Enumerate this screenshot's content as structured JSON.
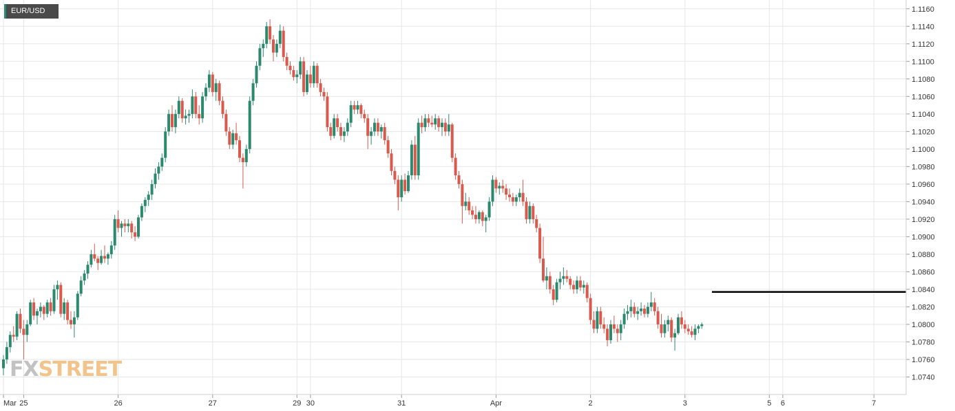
{
  "symbol": "EUR/USD",
  "logo": {
    "part1": "FX",
    "part2": "STREET"
  },
  "colors": {
    "up": "#2b8a6e",
    "down": "#d9594c",
    "grid": "#e6e6e6",
    "line": "#000000",
    "badge": "#4a4a4a"
  },
  "chart_data": {
    "type": "candlestick",
    "title": "",
    "xlabel": "",
    "ylabel": "",
    "ylim": [
      1.072,
      1.117
    ],
    "grid": true,
    "y_ticks": [
      "1.1160",
      "1.1140",
      "1.1120",
      "1.1100",
      "1.1080",
      "1.1060",
      "1.1040",
      "1.1020",
      "1.1000",
      "1.0980",
      "1.0960",
      "1.0940",
      "1.0920",
      "1.0900",
      "1.0880",
      "1.0860",
      "1.0840",
      "1.0820",
      "1.0800",
      "1.0780",
      "1.0760",
      "1.0740"
    ],
    "x_ticks": [
      {
        "label": "Mar",
        "index": 0
      },
      {
        "label": "25",
        "index": 6
      },
      {
        "label": "26",
        "index": 34
      },
      {
        "label": "27",
        "index": 62
      },
      {
        "label": "29",
        "index": 87
      },
      {
        "label": "30",
        "index": 91
      },
      {
        "label": "31",
        "index": 118
      },
      {
        "label": "Apr",
        "index": 146
      },
      {
        "label": "2",
        "index": 174
      },
      {
        "label": "3",
        "index": 202
      },
      {
        "label": "5",
        "index": 227
      },
      {
        "label": "6",
        "index": 231
      },
      {
        "label": "7",
        "index": 258
      }
    ],
    "hline": {
      "value": 1.0837,
      "from_index": 210
    },
    "candles": [
      [
        1.075,
        1.0765,
        1.0742,
        1.076
      ],
      [
        1.076,
        1.078,
        1.0755,
        1.0774
      ],
      [
        1.0774,
        1.0792,
        1.0768,
        1.0788
      ],
      [
        1.0788,
        1.0798,
        1.078,
        1.0786
      ],
      [
        1.0786,
        1.0815,
        1.0782,
        1.0812
      ],
      [
        1.0812,
        1.0818,
        1.079,
        1.0795
      ],
      [
        1.0795,
        1.0805,
        1.076,
        1.0788
      ],
      [
        1.0788,
        1.0805,
        1.078,
        1.08
      ],
      [
        1.08,
        1.0828,
        1.0798,
        1.0825
      ],
      [
        1.0825,
        1.083,
        1.0805,
        1.081
      ],
      [
        1.081,
        1.0818,
        1.08,
        1.0815
      ],
      [
        1.0815,
        1.0825,
        1.0808,
        1.082
      ],
      [
        1.082,
        1.0822,
        1.0805,
        1.0812
      ],
      [
        1.0812,
        1.0828,
        1.0808,
        1.0825
      ],
      [
        1.0825,
        1.083,
        1.081,
        1.0815
      ],
      [
        1.0815,
        1.0845,
        1.0812,
        1.084
      ],
      [
        1.084,
        1.085,
        1.0828,
        1.0845
      ],
      [
        1.0845,
        1.0848,
        1.0808,
        1.0812
      ],
      [
        1.0812,
        1.083,
        1.0805,
        1.0825
      ],
      [
        1.0825,
        1.0828,
        1.08,
        1.0805
      ],
      [
        1.0805,
        1.0815,
        1.0795,
        1.08
      ],
      [
        1.08,
        1.0815,
        1.0785,
        1.0808
      ],
      [
        1.0808,
        1.0838,
        1.0805,
        1.0835
      ],
      [
        1.0835,
        1.0855,
        1.0832,
        1.085
      ],
      [
        1.085,
        1.0862,
        1.0845,
        1.0858
      ],
      [
        1.0858,
        1.0872,
        1.0852,
        1.0868
      ],
      [
        1.0868,
        1.0885,
        1.0865,
        1.088
      ],
      [
        1.088,
        1.0892,
        1.0872,
        1.0875
      ],
      [
        1.0875,
        1.0878,
        1.0862,
        1.087
      ],
      [
        1.087,
        1.0885,
        1.0868,
        1.0878
      ],
      [
        1.0878,
        1.089,
        1.087,
        1.0875
      ],
      [
        1.0875,
        1.0882,
        1.0868,
        1.088
      ],
      [
        1.088,
        1.0895,
        1.0875,
        1.089
      ],
      [
        1.089,
        1.0925,
        1.0885,
        1.092
      ],
      [
        1.092,
        1.093,
        1.0905,
        1.091
      ],
      [
        1.091,
        1.0918,
        1.09,
        1.0915
      ],
      [
        1.0915,
        1.092,
        1.0905,
        1.0912
      ],
      [
        1.0912,
        1.092,
        1.0905,
        1.0915
      ],
      [
        1.0915,
        1.0918,
        1.0898,
        1.0905
      ],
      [
        1.0905,
        1.0912,
        1.0895,
        1.09
      ],
      [
        1.09,
        1.0925,
        1.0898,
        1.0922
      ],
      [
        1.0922,
        1.0938,
        1.0918,
        1.0935
      ],
      [
        1.0935,
        1.0945,
        1.0928,
        1.0942
      ],
      [
        1.0942,
        1.0952,
        1.0935,
        1.0948
      ],
      [
        1.0948,
        1.0965,
        1.0942,
        1.096
      ],
      [
        1.096,
        1.0978,
        1.0955,
        1.0972
      ],
      [
        1.0972,
        1.0985,
        1.0965,
        1.098
      ],
      [
        1.098,
        1.0995,
        1.0975,
        1.099
      ],
      [
        1.099,
        1.1025,
        1.0985,
        1.102
      ],
      [
        1.102,
        1.1045,
        1.1015,
        1.104
      ],
      [
        1.104,
        1.105,
        1.102,
        1.1025
      ],
      [
        1.1025,
        1.1045,
        1.1018,
        1.104
      ],
      [
        1.104,
        1.106,
        1.1035,
        1.1055
      ],
      [
        1.1055,
        1.1058,
        1.103,
        1.1035
      ],
      [
        1.1035,
        1.1045,
        1.1028,
        1.1038
      ],
      [
        1.1038,
        1.1045,
        1.103,
        1.104
      ],
      [
        1.104,
        1.1068,
        1.1035,
        1.106
      ],
      [
        1.106,
        1.1065,
        1.1035,
        1.104
      ],
      [
        1.104,
        1.105,
        1.1028,
        1.1035
      ],
      [
        1.1035,
        1.1065,
        1.103,
        1.106
      ],
      [
        1.106,
        1.1075,
        1.1055,
        1.107
      ],
      [
        1.107,
        1.109,
        1.1065,
        1.1085
      ],
      [
        1.1085,
        1.1088,
        1.106,
        1.1065
      ],
      [
        1.1065,
        1.108,
        1.1055,
        1.1075
      ],
      [
        1.1075,
        1.1078,
        1.105,
        1.1055
      ],
      [
        1.1055,
        1.106,
        1.1035,
        1.104
      ],
      [
        1.104,
        1.1045,
        1.1015,
        1.102
      ],
      [
        1.102,
        1.1025,
        1.1,
        1.1005
      ],
      [
        1.1005,
        1.1022,
        1.1,
        1.1018
      ],
      [
        1.1018,
        1.103,
        1.1005,
        1.101
      ],
      [
        1.101,
        1.1015,
        1.0985,
        1.099
      ],
      [
        1.099,
        1.0995,
        1.0955,
        1.0985
      ],
      [
        1.0985,
        1.1005,
        1.098,
        1.1
      ],
      [
        1.1,
        1.106,
        1.0995,
        1.1055
      ],
      [
        1.1055,
        1.108,
        1.105,
        1.1075
      ],
      [
        1.1075,
        1.11,
        1.107,
        1.1095
      ],
      [
        1.1095,
        1.112,
        1.109,
        1.1115
      ],
      [
        1.1115,
        1.1125,
        1.1105,
        1.112
      ],
      [
        1.112,
        1.1145,
        1.1115,
        1.114
      ],
      [
        1.114,
        1.1148,
        1.112,
        1.1125
      ],
      [
        1.1125,
        1.113,
        1.11,
        1.111
      ],
      [
        1.111,
        1.1125,
        1.1105,
        1.112
      ],
      [
        1.112,
        1.1142,
        1.1115,
        1.1135
      ],
      [
        1.1135,
        1.114,
        1.11,
        1.1105
      ],
      [
        1.1105,
        1.111,
        1.109,
        1.1095
      ],
      [
        1.1095,
        1.11,
        1.1085,
        1.109
      ],
      [
        1.109,
        1.1095,
        1.1078,
        1.1082
      ],
      [
        1.1082,
        1.109,
        1.1075,
        1.1085
      ],
      [
        1.1085,
        1.1105,
        1.108,
        1.11
      ],
      [
        1.11,
        1.1105,
        1.106,
        1.1065
      ],
      [
        1.1065,
        1.109,
        1.1062,
        1.1085
      ],
      [
        1.1085,
        1.1095,
        1.107,
        1.1075
      ],
      [
        1.1075,
        1.11,
        1.107,
        1.1095
      ],
      [
        1.1095,
        1.1098,
        1.107,
        1.1075
      ],
      [
        1.1075,
        1.108,
        1.106,
        1.1065
      ],
      [
        1.1065,
        1.107,
        1.1055,
        1.106
      ],
      [
        1.106,
        1.1065,
        1.102,
        1.1025
      ],
      [
        1.1025,
        1.103,
        1.101,
        1.1015
      ],
      [
        1.1015,
        1.104,
        1.1012,
        1.1035
      ],
      [
        1.1035,
        1.104,
        1.102,
        1.1025
      ],
      [
        1.1025,
        1.103,
        1.101,
        1.1015
      ],
      [
        1.1015,
        1.1025,
        1.1008,
        1.102
      ],
      [
        1.102,
        1.1035,
        1.1015,
        1.103
      ],
      [
        1.103,
        1.1055,
        1.1025,
        1.105
      ],
      [
        1.105,
        1.1055,
        1.104,
        1.1045
      ],
      [
        1.1045,
        1.1055,
        1.104,
        1.105
      ],
      [
        1.105,
        1.1052,
        1.1035,
        1.104
      ],
      [
        1.104,
        1.1045,
        1.103,
        1.1035
      ],
      [
        1.1035,
        1.104,
        1.1,
        1.1015
      ],
      [
        1.1015,
        1.1025,
        1.1005,
        1.102
      ],
      [
        1.102,
        1.1035,
        1.1015,
        1.103
      ],
      [
        1.103,
        1.1035,
        1.1015,
        1.102
      ],
      [
        1.102,
        1.1028,
        1.1012,
        1.1025
      ],
      [
        1.1025,
        1.103,
        1.1005,
        1.101
      ],
      [
        1.101,
        1.1015,
        1.099,
        1.0995
      ],
      [
        1.0995,
        1.1,
        1.097,
        1.0975
      ],
      [
        1.0975,
        1.098,
        1.096,
        1.0965
      ],
      [
        1.0965,
        1.097,
        1.093,
        1.0945
      ],
      [
        1.0945,
        1.097,
        1.094,
        1.0965
      ],
      [
        1.0965,
        1.0972,
        1.0948,
        1.0952
      ],
      [
        1.0952,
        1.0975,
        1.095,
        1.097
      ],
      [
        1.097,
        1.101,
        1.0965,
        1.1005
      ],
      [
        1.1005,
        1.1015,
        1.0965,
        1.097
      ],
      [
        1.097,
        1.1035,
        1.0965,
        1.103
      ],
      [
        1.103,
        1.1038,
        1.1018,
        1.1025
      ],
      [
        1.1025,
        1.104,
        1.102,
        1.1035
      ],
      [
        1.1035,
        1.104,
        1.1025,
        1.103
      ],
      [
        1.103,
        1.1038,
        1.1025,
        1.1028
      ],
      [
        1.1028,
        1.104,
        1.1022,
        1.1035
      ],
      [
        1.1035,
        1.1038,
        1.102,
        1.1025
      ],
      [
        1.1025,
        1.1035,
        1.1015,
        1.103
      ],
      [
        1.103,
        1.1035,
        1.1015,
        1.102
      ],
      [
        1.102,
        1.104,
        1.1015,
        1.1028
      ],
      [
        1.1028,
        1.103,
        1.0985,
        1.099
      ],
      [
        1.099,
        1.0995,
        1.0965,
        1.097
      ],
      [
        1.097,
        1.0975,
        1.0955,
        1.096
      ],
      [
        1.096,
        1.0965,
        1.0915,
        1.0935
      ],
      [
        1.0935,
        1.095,
        1.093,
        1.094
      ],
      [
        1.094,
        1.0945,
        1.0925,
        1.093
      ],
      [
        1.093,
        1.0935,
        1.092,
        1.0925
      ],
      [
        1.0925,
        1.0935,
        1.0915,
        1.092
      ],
      [
        1.092,
        1.093,
        1.0915,
        1.0928
      ],
      [
        1.0928,
        1.093,
        1.0912,
        1.0918
      ],
      [
        1.0918,
        1.0925,
        1.0905,
        1.0922
      ],
      [
        1.0922,
        1.0945,
        1.0918,
        1.094
      ],
      [
        1.094,
        1.097,
        1.0935,
        1.0965
      ],
      [
        1.0965,
        1.0968,
        1.095,
        1.0955
      ],
      [
        1.0955,
        1.0962,
        1.0948,
        1.0958
      ],
      [
        1.0958,
        1.0965,
        1.095,
        1.0955
      ],
      [
        1.0955,
        1.096,
        1.0942,
        1.0948
      ],
      [
        1.0948,
        1.0955,
        1.094,
        1.0945
      ],
      [
        1.0945,
        1.095,
        1.0935,
        1.094
      ],
      [
        1.094,
        1.0948,
        1.0935,
        1.0945
      ],
      [
        1.0945,
        1.0955,
        1.094,
        1.095
      ],
      [
        1.095,
        1.0965,
        1.0935,
        1.094
      ],
      [
        1.094,
        1.0945,
        1.0915,
        1.092
      ],
      [
        1.092,
        1.094,
        1.0915,
        1.0935
      ],
      [
        1.0935,
        1.0938,
        1.0915,
        1.092
      ],
      [
        1.092,
        1.0925,
        1.0905,
        1.091
      ],
      [
        1.091,
        1.0915,
        1.087,
        1.0875
      ],
      [
        1.0875,
        1.09,
        1.0848,
        1.085
      ],
      [
        1.085,
        1.0865,
        1.084,
        1.0855
      ],
      [
        1.0855,
        1.086,
        1.0835,
        1.084
      ],
      [
        1.084,
        1.0845,
        1.0822,
        1.0828
      ],
      [
        1.0828,
        1.0852,
        1.0825,
        1.0848
      ],
      [
        1.0848,
        1.086,
        1.084,
        1.0852
      ],
      [
        1.0852,
        1.0865,
        1.0845,
        1.0855
      ],
      [
        1.0855,
        1.0862,
        1.0848,
        1.0852
      ],
      [
        1.0852,
        1.0855,
        1.084,
        1.0845
      ],
      [
        1.0845,
        1.085,
        1.0835,
        1.084
      ],
      [
        1.084,
        1.0855,
        1.0835,
        1.085
      ],
      [
        1.085,
        1.0855,
        1.0838,
        1.0842
      ],
      [
        1.0842,
        1.085,
        1.0835,
        1.0845
      ],
      [
        1.0845,
        1.0848,
        1.0825,
        1.083
      ],
      [
        1.083,
        1.0835,
        1.08,
        1.0805
      ],
      [
        1.0805,
        1.0815,
        1.079,
        1.0795
      ],
      [
        1.0795,
        1.082,
        1.079,
        1.0815
      ],
      [
        1.0815,
        1.082,
        1.0795,
        1.08
      ],
      [
        1.08,
        1.0808,
        1.079,
        1.0795
      ],
      [
        1.0795,
        1.08,
        1.0775,
        1.0782
      ],
      [
        1.0782,
        1.0805,
        1.0778,
        1.08
      ],
      [
        1.08,
        1.081,
        1.079,
        1.0795
      ],
      [
        1.0795,
        1.08,
        1.078,
        1.079
      ],
      [
        1.079,
        1.0805,
        1.0782,
        1.08
      ],
      [
        1.08,
        1.0818,
        1.0795,
        1.0812
      ],
      [
        1.0812,
        1.0822,
        1.0805,
        1.0815
      ],
      [
        1.0815,
        1.0828,
        1.0808,
        1.082
      ],
      [
        1.082,
        1.0825,
        1.0808,
        1.0812
      ],
      [
        1.0812,
        1.082,
        1.0805,
        1.0815
      ],
      [
        1.0815,
        1.0825,
        1.081,
        1.0818
      ],
      [
        1.0818,
        1.0822,
        1.0808,
        1.0812
      ],
      [
        1.0812,
        1.0825,
        1.0808,
        1.082
      ],
      [
        1.082,
        1.0837,
        1.0815,
        1.0825
      ],
      [
        1.0825,
        1.083,
        1.081,
        1.0815
      ],
      [
        1.0815,
        1.082,
        1.0795,
        1.08
      ],
      [
        1.08,
        1.0812,
        1.0785,
        1.079
      ],
      [
        1.079,
        1.0805,
        1.0785,
        1.08
      ],
      [
        1.08,
        1.081,
        1.0792,
        1.0805
      ],
      [
        1.0805,
        1.0808,
        1.078,
        1.0785
      ],
      [
        1.0785,
        1.0795,
        1.077,
        1.079
      ],
      [
        1.079,
        1.0812,
        1.0788,
        1.0808
      ],
      [
        1.0808,
        1.0815,
        1.0795,
        1.08
      ],
      [
        1.08,
        1.0805,
        1.079,
        1.0795
      ],
      [
        1.0795,
        1.08,
        1.0788,
        1.0792
      ],
      [
        1.0792,
        1.0798,
        1.0785,
        1.0788
      ],
      [
        1.0788,
        1.08,
        1.0782,
        1.0795
      ],
      [
        1.0795,
        1.08,
        1.079,
        1.0798
      ],
      [
        1.0798,
        1.0802,
        1.0795,
        1.08
      ]
    ]
  }
}
